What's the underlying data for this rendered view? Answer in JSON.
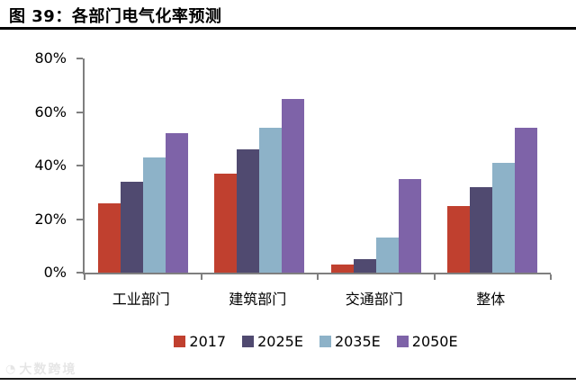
{
  "header": {
    "title": "图 39：各部门电气化率预测"
  },
  "chart_data": {
    "type": "bar",
    "title": "各部门电气化率预测",
    "categories": [
      "工业部门",
      "建筑部门",
      "交通部门",
      "整体"
    ],
    "series": [
      {
        "name": "2017",
        "color": "#C0402F",
        "values": [
          26,
          37,
          3,
          25
        ]
      },
      {
        "name": "2025E",
        "color": "#504A70",
        "values": [
          34,
          46,
          5,
          32
        ]
      },
      {
        "name": "2035E",
        "color": "#8DB2C8",
        "values": [
          43,
          54,
          13,
          41
        ]
      },
      {
        "name": "2050E",
        "color": "#7E63A8",
        "values": [
          52,
          65,
          35,
          54
        ]
      }
    ],
    "ylabel": "",
    "xlabel": "",
    "ylim": [
      0,
      80
    ],
    "yticks": [
      {
        "label": "80%",
        "value": 80
      },
      {
        "label": "60%",
        "value": 60
      },
      {
        "label": "40%",
        "value": 40
      },
      {
        "label": "20%",
        "value": 20
      },
      {
        "label": "0%",
        "value": 0
      }
    ],
    "grid": false,
    "legend_position": "bottom"
  },
  "watermark": {
    "icon": "◔",
    "text": "大数跨境"
  },
  "colors": {
    "axis": "#7f7f7f",
    "title_rule": "#000000",
    "bottom_rule": "#1a1a1a"
  }
}
